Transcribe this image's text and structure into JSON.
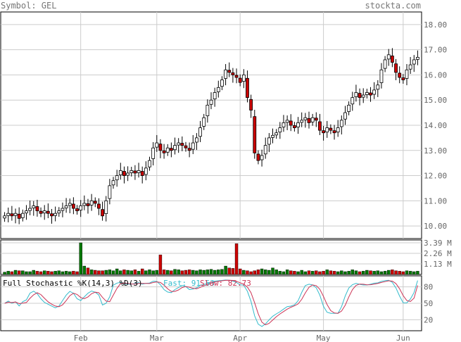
{
  "header": {
    "symbol": "Symbol: GEL",
    "site": "stockta.com"
  },
  "price_axis": [
    "18.00",
    "17.00",
    "16.00",
    "15.00",
    "14.00",
    "13.00",
    "12.00",
    "11.00",
    "10.00"
  ],
  "volume_axis": [
    "3.39 M",
    "2.26 M",
    "1.13 M"
  ],
  "stoch_axis": [
    "80",
    "50",
    "20"
  ],
  "months": [
    "Feb",
    "Mar",
    "Apr",
    "May",
    "Jun"
  ],
  "stochastic": {
    "title": "Full Stochastic %K(14,3) %D(3)",
    "fast_label": "Fast: 91.53",
    "slow_label": "Slow: 82.73"
  },
  "colors": {
    "up": "#ffffff",
    "down": "#cc0000",
    "vol_up": "#007700",
    "vol_down": "#cc0000",
    "fast": "#33bbcc",
    "slow": "#cc3355",
    "grid": "#cccccc",
    "axis": "#666666"
  },
  "chart_data": {
    "type": "candlestick",
    "title": "Symbol: GEL",
    "price_range": [
      9.5,
      18.5
    ],
    "volume_max_millions": 3.39,
    "stoch_range": [
      0,
      100
    ],
    "sessions": 115,
    "month_starts": {
      "Feb": 21,
      "Mar": 42,
      "Apr": 65,
      "May": 88,
      "Jun": 110
    },
    "price_close": [
      10.4,
      10.5,
      10.4,
      10.5,
      10.3,
      10.5,
      10.6,
      10.7,
      10.8,
      10.6,
      10.5,
      10.6,
      10.5,
      10.4,
      10.5,
      10.6,
      10.7,
      10.8,
      10.9,
      10.7,
      10.6,
      10.8,
      10.9,
      10.8,
      11.0,
      10.9,
      10.7,
      10.4,
      11.0,
      11.6,
      11.8,
      12.0,
      12.2,
      12.0,
      12.1,
      12.2,
      12.1,
      12.2,
      12.0,
      12.3,
      12.6,
      13.1,
      13.3,
      13.0,
      12.9,
      13.1,
      13.0,
      13.2,
      13.3,
      13.2,
      13.1,
      13.0,
      13.3,
      13.5,
      13.9,
      14.3,
      14.8,
      15.0,
      15.3,
      15.5,
      15.8,
      16.2,
      16.1,
      16.0,
      15.9,
      15.7,
      16.0,
      15.1,
      14.6,
      12.9,
      12.6,
      12.8,
      13.2,
      13.5,
      13.6,
      13.7,
      13.9,
      14.1,
      14.2,
      14.0,
      13.9,
      14.1,
      14.2,
      14.3,
      14.1,
      14.3,
      14.2,
      13.8,
      13.7,
      13.9,
      13.8,
      13.7,
      13.9,
      14.2,
      14.5,
      14.8,
      15.1,
      15.3,
      15.1,
      15.2,
      15.3,
      15.2,
      15.4,
      15.6,
      16.2,
      16.6,
      16.8,
      16.5,
      16.1,
      15.9,
      15.8,
      16.2,
      16.4,
      16.6,
      16.7
    ],
    "volume_millions": [
      0.25,
      0.35,
      0.3,
      0.45,
      0.4,
      0.4,
      0.3,
      0.3,
      0.45,
      0.35,
      0.3,
      0.4,
      0.35,
      0.3,
      0.35,
      0.4,
      0.3,
      0.35,
      0.3,
      0.35,
      0.3,
      3.39,
      0.9,
      0.7,
      0.5,
      0.45,
      0.4,
      0.4,
      0.45,
      0.5,
      0.4,
      0.6,
      0.4,
      0.5,
      0.45,
      0.4,
      0.5,
      0.35,
      0.6,
      0.4,
      0.5,
      0.4,
      0.45,
      2.1,
      0.5,
      0.45,
      0.4,
      0.55,
      0.5,
      0.4,
      0.45,
      0.5,
      0.45,
      0.4,
      0.5,
      0.45,
      0.5,
      0.55,
      0.45,
      0.5,
      0.55,
      0.9,
      0.7,
      0.65,
      3.3,
      0.6,
      0.45,
      0.4,
      0.3,
      0.4,
      0.5,
      0.6,
      0.5,
      0.45,
      0.7,
      0.5,
      0.35,
      0.3,
      0.5,
      0.4,
      0.35,
      0.3,
      0.45,
      0.3,
      0.4,
      0.35,
      0.4,
      0.3,
      0.35,
      0.5,
      0.4,
      0.35,
      0.3,
      0.4,
      0.3,
      0.35,
      0.5,
      0.4,
      0.3,
      0.35,
      0.45,
      0.4,
      0.35,
      0.4,
      0.3,
      0.35,
      0.45,
      0.5,
      0.4,
      0.35,
      0.3,
      0.4,
      0.35,
      0.3,
      0.35
    ],
    "stoch_fast_last": 91.53,
    "stoch_slow_last": 82.73
  }
}
